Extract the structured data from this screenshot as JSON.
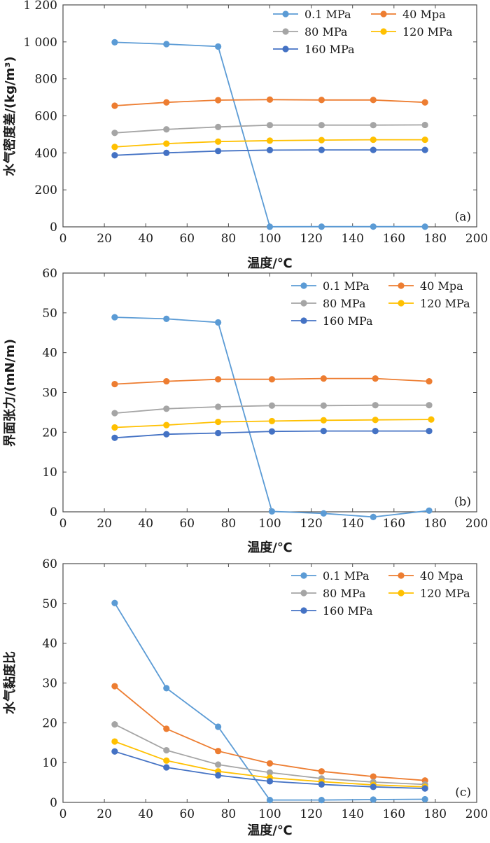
{
  "legend": [
    {
      "name": "0.1 MPa",
      "color": "#5b9bd5"
    },
    {
      "name": "40 Mpa",
      "color": "#ed7d31"
    },
    {
      "name": "80 MPa",
      "color": "#a5a5a5"
    },
    {
      "name": "120 MPa",
      "color": "#ffc000"
    },
    {
      "name": "160 MPa",
      "color": "#4472c4"
    }
  ],
  "chart_data": [
    {
      "type": "line",
      "panel_label": "(a)",
      "xlabel": "温度/℃",
      "ylabel": "水气密度差/(kg/m³)",
      "xlim": [
        0,
        200
      ],
      "ylim": [
        0,
        1200
      ],
      "x_ticks": [
        "0",
        "20",
        "40",
        "60",
        "80",
        "100",
        "120",
        "140",
        "160",
        "180",
        "200"
      ],
      "y_ticks": [
        "0",
        "200",
        "400",
        "600",
        "800",
        "1 000",
        "1 200"
      ],
      "series": [
        {
          "name": "0.1 MPa",
          "color": "#5b9bd5",
          "x": [
            25,
            50,
            75,
            100,
            125,
            150,
            175
          ],
          "y": [
            998,
            988,
            975,
            0.6,
            1.0,
            1.2,
            1.0
          ]
        },
        {
          "name": "40 Mpa",
          "color": "#ed7d31",
          "x": [
            25,
            50,
            75,
            100,
            125,
            150,
            175
          ],
          "y": [
            655,
            673,
            685,
            688,
            686,
            686,
            673
          ]
        },
        {
          "name": "80 MPa",
          "color": "#a5a5a5",
          "x": [
            25,
            50,
            75,
            100,
            125,
            150,
            175
          ],
          "y": [
            508,
            527,
            540,
            550,
            550,
            550,
            551
          ]
        },
        {
          "name": "120 MPa",
          "color": "#ffc000",
          "x": [
            25,
            50,
            75,
            100,
            125,
            150,
            175
          ],
          "y": [
            432,
            450,
            461,
            466,
            469,
            471,
            471
          ]
        },
        {
          "name": "160 MPa",
          "color": "#4472c4",
          "x": [
            25,
            50,
            75,
            100,
            125,
            150,
            175
          ],
          "y": [
            387,
            400,
            410,
            415,
            416,
            416,
            416
          ]
        }
      ]
    },
    {
      "type": "line",
      "panel_label": "(b)",
      "xlabel": "温度/℃",
      "ylabel": "界面张力/(mN/m)",
      "xlim": [
        0,
        200
      ],
      "ylim": [
        0,
        60
      ],
      "x_ticks": [
        "0",
        "20",
        "40",
        "60",
        "80",
        "100",
        "120",
        "140",
        "160",
        "180",
        "200"
      ],
      "y_ticks": [
        "0",
        "10",
        "20",
        "30",
        "40",
        "50",
        "60"
      ],
      "series": [
        {
          "name": "0.1 MPa",
          "color": "#5b9bd5",
          "x": [
            25,
            50,
            75,
            101,
            126,
            150,
            177
          ],
          "y": [
            48.9,
            48.5,
            47.6,
            0.1,
            -0.4,
            -1.3,
            0.3
          ]
        },
        {
          "name": "40 Mpa",
          "color": "#ed7d31",
          "x": [
            25,
            50,
            75,
            101,
            126,
            151,
            177
          ],
          "y": [
            32.1,
            32.8,
            33.3,
            33.3,
            33.5,
            33.5,
            32.8
          ]
        },
        {
          "name": "80 MPa",
          "color": "#a5a5a5",
          "x": [
            25,
            50,
            75,
            101,
            126,
            151,
            177
          ],
          "y": [
            24.8,
            25.9,
            26.4,
            26.7,
            26.7,
            26.8,
            26.8
          ]
        },
        {
          "name": "120 MPa",
          "color": "#ffc000",
          "x": [
            25,
            50,
            75,
            101,
            126,
            151,
            178
          ],
          "y": [
            21.2,
            21.8,
            22.6,
            22.8,
            23.0,
            23.1,
            23.2
          ]
        },
        {
          "name": "160 MPa",
          "color": "#4472c4",
          "x": [
            25,
            50,
            75,
            101,
            126,
            151,
            177
          ],
          "y": [
            18.6,
            19.5,
            19.8,
            20.2,
            20.3,
            20.3,
            20.3
          ]
        }
      ]
    },
    {
      "type": "line",
      "panel_label": "(c)",
      "xlabel": "温度/℃",
      "ylabel": "水气黏度比",
      "xlim": [
        0,
        200
      ],
      "ylim": [
        0,
        60
      ],
      "x_ticks": [
        "0",
        "20",
        "40",
        "60",
        "80",
        "100",
        "120",
        "140",
        "160",
        "180",
        "200"
      ],
      "y_ticks": [
        "0",
        "10",
        "20",
        "30",
        "40",
        "50",
        "60"
      ],
      "series": [
        {
          "name": "0.1 MPa",
          "color": "#5b9bd5",
          "x": [
            25,
            50,
            75,
            100,
            125,
            150,
            175
          ],
          "y": [
            50.1,
            28.7,
            19.0,
            0.6,
            0.6,
            0.7,
            0.8
          ]
        },
        {
          "name": "40 Mpa",
          "color": "#ed7d31",
          "x": [
            25,
            50,
            75,
            100,
            125,
            150,
            175
          ],
          "y": [
            29.2,
            18.5,
            12.9,
            9.8,
            7.8,
            6.5,
            5.5
          ]
        },
        {
          "name": "80 MPa",
          "color": "#a5a5a5",
          "x": [
            25,
            50,
            75,
            100,
            125,
            150,
            175
          ],
          "y": [
            19.6,
            13.1,
            9.5,
            7.5,
            6.0,
            5.1,
            4.5
          ]
        },
        {
          "name": "120 MPa",
          "color": "#ffc000",
          "x": [
            25,
            50,
            75,
            100,
            125,
            150,
            175
          ],
          "y": [
            15.3,
            10.5,
            7.8,
            6.2,
            5.2,
            4.4,
            3.9
          ]
        },
        {
          "name": "160 MPa",
          "color": "#4472c4",
          "x": [
            25,
            50,
            75,
            100,
            125,
            150,
            175
          ],
          "y": [
            12.8,
            8.8,
            6.8,
            5.3,
            4.5,
            3.9,
            3.5
          ]
        }
      ]
    }
  ]
}
